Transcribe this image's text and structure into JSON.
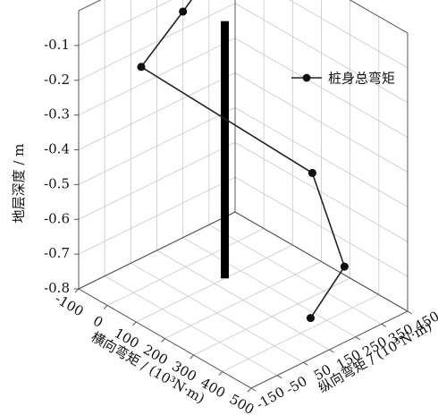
{
  "chart_data": {
    "type": "line3d",
    "series": [
      {
        "name": "桩身总弯矩",
        "points": [
          {
            "x": -100,
            "y": 400,
            "z": -0.05
          },
          {
            "x": -100,
            "y": 250,
            "z": -0.15
          },
          {
            "x": -100,
            "y": 90,
            "z": -0.25
          },
          {
            "x": 350,
            "y": 250,
            "z": -0.4
          },
          {
            "x": 480,
            "y": 230,
            "z": -0.6
          },
          {
            "x": 480,
            "y": 100,
            "z": -0.7
          }
        ]
      }
    ],
    "pile": {
      "x": 100,
      "y": 190,
      "z_top": -0.06,
      "z_bottom": -0.8
    },
    "x_axis": {
      "label": "横向弯矩 / (10³N·m)",
      "ticks": [
        "-100",
        "0",
        "100",
        "200",
        "300",
        "400",
        "500"
      ],
      "range": [
        -100,
        500
      ]
    },
    "y_axis": {
      "label": "纵向弯矩 / (10³N·m)",
      "ticks": [
        "-150",
        "-50",
        "50",
        "150",
        "250",
        "350",
        "450"
      ],
      "range": [
        -150,
        450
      ]
    },
    "z_axis": {
      "label": "地层深度 / m",
      "ticks": [
        "-0.1",
        "-0.2",
        "-0.3",
        "-0.4",
        "-0.5",
        "-0.6",
        "-0.7",
        "-0.8"
      ],
      "range": [
        -0.8,
        0.0
      ]
    },
    "legend": {
      "label": "桩身总弯矩",
      "position": "top-right"
    },
    "grid": true,
    "colors": {
      "line": "#222222",
      "marker": "#111111",
      "pile": "#000000",
      "grid": "#c8c8c8"
    }
  }
}
